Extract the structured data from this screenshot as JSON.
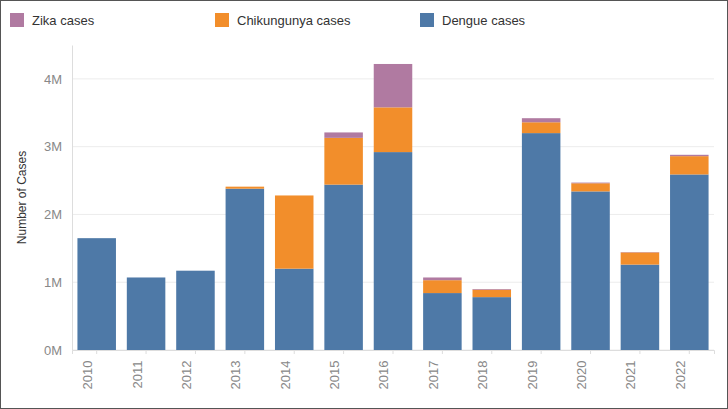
{
  "chart_data": {
    "type": "bar",
    "stacked": true,
    "grid": true,
    "legend": "top",
    "y_label": "Number of Cases",
    "categories": [
      "2010",
      "2011",
      "2012",
      "2013",
      "2014",
      "2015",
      "2016",
      "2017",
      "2018",
      "2019",
      "2020",
      "2021",
      "2022"
    ],
    "series": [
      {
        "name": "Dengue cases",
        "color": "#4e79a7",
        "values": [
          1650000,
          1070000,
          1170000,
          2380000,
          1200000,
          2440000,
          2920000,
          840000,
          780000,
          3200000,
          2340000,
          1260000,
          2590000
        ]
      },
      {
        "name": "Chikungunya cases",
        "color": "#f28e2b",
        "values": [
          0,
          0,
          0,
          30000,
          1080000,
          690000,
          660000,
          190000,
          110000,
          160000,
          120000,
          180000,
          270000
        ]
      },
      {
        "name": "Zika cases",
        "color": "#b07aa1",
        "values": [
          0,
          0,
          0,
          0,
          0,
          80000,
          640000,
          40000,
          10000,
          60000,
          10000,
          5000,
          20000
        ]
      }
    ],
    "ylim": [
      0,
      4500000
    ],
    "yticks": [
      {
        "value": 0,
        "label": "0M"
      },
      {
        "value": 1000000,
        "label": "1M"
      },
      {
        "value": 2000000,
        "label": "2M"
      },
      {
        "value": 3000000,
        "label": "3M"
      },
      {
        "value": 4000000,
        "label": "4M"
      }
    ]
  }
}
